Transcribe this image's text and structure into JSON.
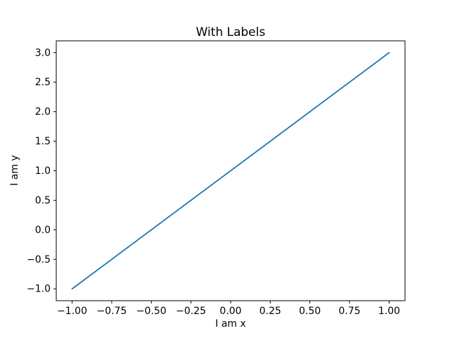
{
  "figure": {
    "background": "#ffffff",
    "spine_color": "#000000",
    "text_color": "#000000"
  },
  "chart_data": {
    "type": "line",
    "title": "With Labels",
    "xlabel": "I am x",
    "ylabel": "I am y",
    "grid": false,
    "legend": null,
    "xlim": [
      -1.1,
      1.1
    ],
    "ylim": [
      -1.2,
      3.2
    ],
    "series": [
      {
        "name": "line",
        "color": "#1f77b4",
        "x": [
          -1.0,
          1.0
        ],
        "y": [
          -1.0,
          3.0
        ]
      }
    ],
    "xticks": {
      "values": [
        -1.0,
        -0.75,
        -0.5,
        -0.25,
        0.0,
        0.25,
        0.5,
        0.75,
        1.0
      ],
      "labels": [
        "−1.00",
        "−0.75",
        "−0.50",
        "−0.25",
        "0.00",
        "0.25",
        "0.50",
        "0.75",
        "1.00"
      ]
    },
    "yticks": {
      "values": [
        -1.0,
        -0.5,
        0.0,
        0.5,
        1.0,
        1.5,
        2.0,
        2.5,
        3.0
      ],
      "labels": [
        "−1.0",
        "−0.5",
        "0.0",
        "0.5",
        "1.0",
        "1.5",
        "2.0",
        "2.5",
        "3.0"
      ]
    }
  }
}
